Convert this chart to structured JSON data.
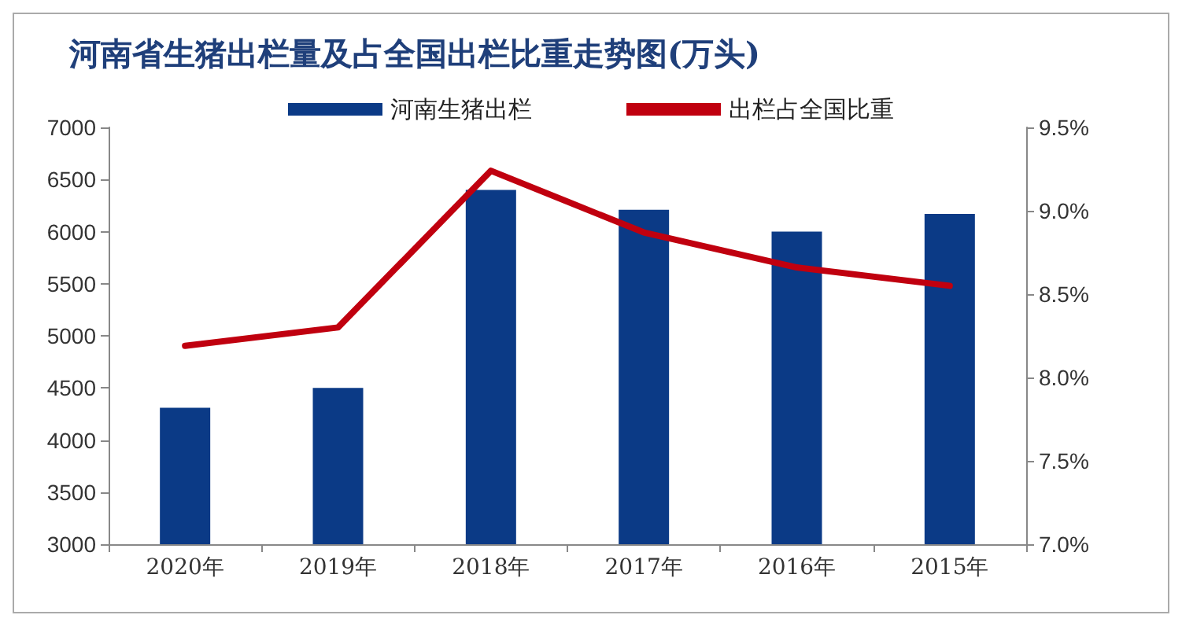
{
  "chart_data": {
    "type": "bar",
    "title": "河南省生猪出栏量及占全国出栏比重走势图(万头)",
    "categories": [
      "2020年",
      "2019年",
      "2018年",
      "2017年",
      "2016年",
      "2015年"
    ],
    "series": [
      {
        "name": "河南生猪出栏",
        "color": "#0b3a86",
        "values": [
          4310,
          4500,
          6400,
          6210,
          6000,
          6170
        ]
      },
      {
        "name": "出栏占全国比重",
        "type": "line",
        "axis": "y2",
        "color": "#c0000f",
        "values": [
          8.19,
          8.3,
          9.24,
          8.87,
          8.66,
          8.55
        ]
      }
    ],
    "ylim": [
      3000,
      7000
    ],
    "yticks": [
      3000,
      3500,
      4000,
      4500,
      5000,
      5500,
      6000,
      6500,
      7000
    ],
    "y2lim": [
      7.0,
      9.5
    ],
    "y2ticks": [
      {
        "value": 7.0,
        "label": "7.0%"
      },
      {
        "value": 7.5,
        "label": "7.5%"
      },
      {
        "value": 8.0,
        "label": "8.0%"
      },
      {
        "value": 8.5,
        "label": "8.5%"
      },
      {
        "value": 9.0,
        "label": "9.0%"
      },
      {
        "value": 9.5,
        "label": "9.5%"
      }
    ],
    "grid": false,
    "legend": "top",
    "marker": "none"
  }
}
